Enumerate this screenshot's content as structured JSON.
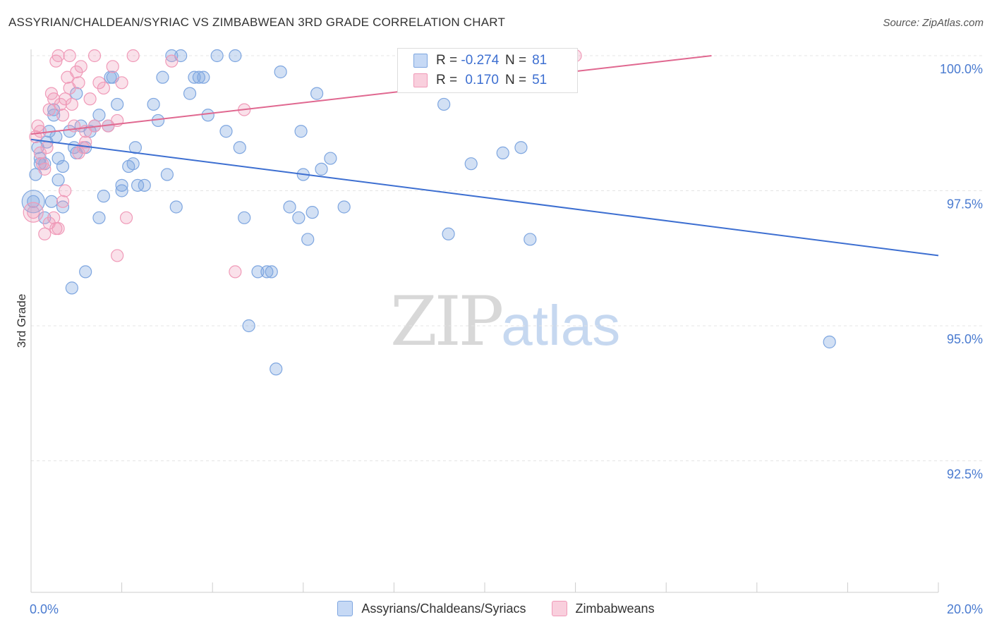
{
  "title": "ASSYRIAN/CHALDEAN/SYRIAC VS ZIMBABWEAN 3RD GRADE CORRELATION CHART",
  "source": "Source: ZipAtlas.com",
  "watermark": {
    "zip": "ZIP",
    "atlas": "atlas"
  },
  "colors": {
    "blue": "#7ea6e0",
    "blue_line": "#3d6fd1",
    "pink": "#f09ab8",
    "pink_line": "#e06890",
    "tick_text": "#4a7bd0"
  },
  "legend": {
    "series1": {
      "r_label": "R =",
      "r_value": "-0.274",
      "n_label": "N =",
      "n_value": "81"
    },
    "series2": {
      "r_label": "R =",
      "r_value": "0.170",
      "n_label": "N =",
      "n_value": "51"
    }
  },
  "legend_bottom": {
    "series1": "Assyrians/Chaldeans/Syriacs",
    "series2": "Zimbabweans"
  },
  "chart_data": {
    "type": "scatter",
    "xlabel": "",
    "ylabel": "3rd Grade",
    "xlim": [
      0,
      20
    ],
    "ylim": [
      90.5,
      100.4
    ],
    "x_tick_labels": [
      "0.0%",
      "20.0%"
    ],
    "y_ticks": [
      100.0,
      97.5,
      95.0,
      92.5
    ],
    "y_tick_labels": [
      "100.0%",
      "97.5%",
      "95.0%",
      "92.5%"
    ],
    "grid": "horizontal dashed",
    "series": [
      {
        "name": "Assyrians/Chaldeans/Syriacs",
        "color": "#7ea6e0",
        "trend": {
          "x": [
            0,
            20
          ],
          "y": [
            98.45,
            96.3
          ]
        },
        "points": [
          [
            0.05,
            97.3
          ],
          [
            0.1,
            97.8
          ],
          [
            0.15,
            98.3
          ],
          [
            0.2,
            98.1
          ],
          [
            0.3,
            98.0
          ],
          [
            0.35,
            98.4
          ],
          [
            0.4,
            98.6
          ],
          [
            0.5,
            99.0
          ],
          [
            0.55,
            98.5
          ],
          [
            0.6,
            98.1
          ],
          [
            0.7,
            97.95
          ],
          [
            0.3,
            97.0
          ],
          [
            0.45,
            97.3
          ],
          [
            0.7,
            97.2
          ],
          [
            0.85,
            98.6
          ],
          [
            0.95,
            98.3
          ],
          [
            1.0,
            99.3
          ],
          [
            1.1,
            98.7
          ],
          [
            1.2,
            98.3
          ],
          [
            1.3,
            98.6
          ],
          [
            1.4,
            98.7
          ],
          [
            1.5,
            97.0
          ],
          [
            1.6,
            97.4
          ],
          [
            1.7,
            98.7
          ],
          [
            1.75,
            99.6
          ],
          [
            1.8,
            99.6
          ],
          [
            1.9,
            99.1
          ],
          [
            2.0,
            97.5
          ],
          [
            2.15,
            97.95
          ],
          [
            2.25,
            98.0
          ],
          [
            2.35,
            97.6
          ],
          [
            2.5,
            97.6
          ],
          [
            2.7,
            99.1
          ],
          [
            2.8,
            98.8
          ],
          [
            2.9,
            99.6
          ],
          [
            3.0,
            97.8
          ],
          [
            3.1,
            100.0
          ],
          [
            3.2,
            97.2
          ],
          [
            3.3,
            100.0
          ],
          [
            3.5,
            99.3
          ],
          [
            3.6,
            99.6
          ],
          [
            3.7,
            99.6
          ],
          [
            3.8,
            99.6
          ],
          [
            3.9,
            98.9
          ],
          [
            4.1,
            100.0
          ],
          [
            4.3,
            98.6
          ],
          [
            4.5,
            100.0
          ],
          [
            4.6,
            98.3
          ],
          [
            4.7,
            97.0
          ],
          [
            4.8,
            95.0
          ],
          [
            5.0,
            96.0
          ],
          [
            5.2,
            96.0
          ],
          [
            5.3,
            96.0
          ],
          [
            5.4,
            94.2
          ],
          [
            5.5,
            99.7
          ],
          [
            5.7,
            97.2
          ],
          [
            5.9,
            97.0
          ],
          [
            5.95,
            98.6
          ],
          [
            6.0,
            97.8
          ],
          [
            6.1,
            96.6
          ],
          [
            6.2,
            97.1
          ],
          [
            6.3,
            99.3
          ],
          [
            6.4,
            97.9
          ],
          [
            6.6,
            98.1
          ],
          [
            6.9,
            97.2
          ],
          [
            9.1,
            99.1
          ],
          [
            9.2,
            96.7
          ],
          [
            9.7,
            98.0
          ],
          [
            10.4,
            98.2
          ],
          [
            10.8,
            98.3
          ],
          [
            11.0,
            96.6
          ],
          [
            17.6,
            94.7
          ],
          [
            0.2,
            98.0
          ],
          [
            0.5,
            98.9
          ],
          [
            1.2,
            96.0
          ],
          [
            0.9,
            95.7
          ],
          [
            1.5,
            98.9
          ],
          [
            2.3,
            98.3
          ],
          [
            2.0,
            97.6
          ],
          [
            1.0,
            98.2
          ],
          [
            0.6,
            97.7
          ]
        ]
      },
      {
        "name": "Zimbabweans",
        "color": "#f09ab8",
        "trend": {
          "x": [
            0,
            15
          ],
          "y": [
            98.55,
            100.0
          ]
        },
        "points": [
          [
            0.05,
            97.1
          ],
          [
            0.1,
            98.5
          ],
          [
            0.15,
            98.7
          ],
          [
            0.2,
            98.2
          ],
          [
            0.25,
            98.0
          ],
          [
            0.3,
            97.9
          ],
          [
            0.35,
            98.3
          ],
          [
            0.4,
            99.0
          ],
          [
            0.45,
            99.3
          ],
          [
            0.5,
            99.2
          ],
          [
            0.55,
            99.9
          ],
          [
            0.6,
            100.0
          ],
          [
            0.65,
            99.1
          ],
          [
            0.7,
            98.9
          ],
          [
            0.75,
            99.2
          ],
          [
            0.8,
            99.6
          ],
          [
            0.85,
            100.0
          ],
          [
            0.9,
            99.1
          ],
          [
            0.95,
            98.7
          ],
          [
            1.0,
            99.7
          ],
          [
            1.05,
            99.5
          ],
          [
            1.1,
            99.8
          ],
          [
            1.15,
            98.3
          ],
          [
            1.2,
            98.6
          ],
          [
            1.3,
            99.2
          ],
          [
            1.4,
            98.7
          ],
          [
            1.5,
            99.5
          ],
          [
            1.6,
            99.4
          ],
          [
            1.7,
            98.7
          ],
          [
            1.8,
            99.8
          ],
          [
            1.9,
            98.8
          ],
          [
            2.0,
            99.5
          ],
          [
            0.3,
            96.7
          ],
          [
            0.4,
            96.9
          ],
          [
            0.5,
            97.0
          ],
          [
            0.55,
            96.8
          ],
          [
            0.6,
            96.8
          ],
          [
            0.7,
            97.3
          ],
          [
            1.9,
            96.3
          ],
          [
            2.1,
            97.0
          ],
          [
            3.1,
            99.9
          ],
          [
            4.5,
            96.0
          ],
          [
            4.7,
            99.0
          ],
          [
            12.0,
            100.0
          ],
          [
            1.05,
            98.2
          ],
          [
            0.75,
            97.5
          ],
          [
            0.2,
            98.6
          ],
          [
            1.4,
            100.0
          ],
          [
            2.25,
            100.0
          ],
          [
            1.2,
            98.4
          ],
          [
            0.85,
            99.4
          ]
        ]
      }
    ]
  }
}
